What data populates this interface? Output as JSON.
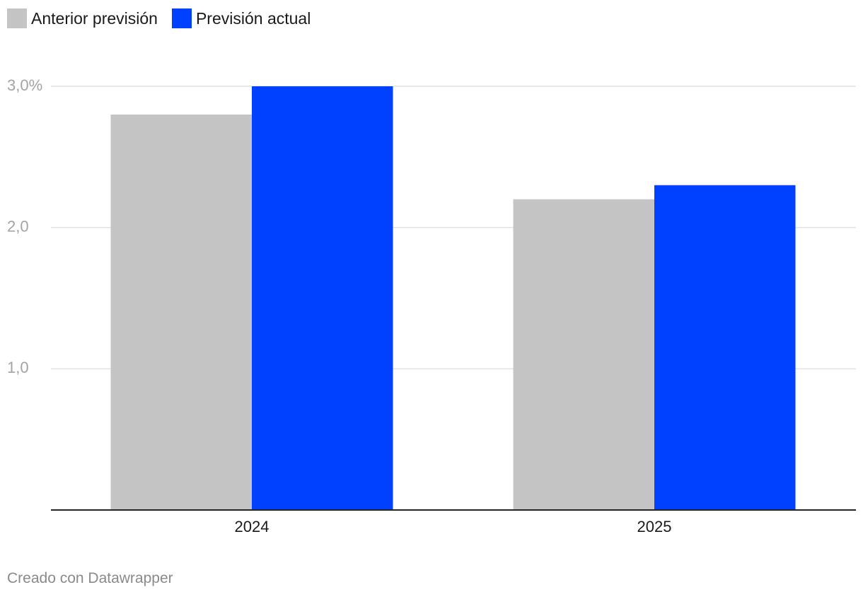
{
  "chart_data": {
    "type": "bar",
    "categories": [
      "2024",
      "2025"
    ],
    "series": [
      {
        "name": "Anterior previsión",
        "color": "#c4c4c4",
        "values": [
          2.8,
          2.2
        ]
      },
      {
        "name": "Previsión actual",
        "color": "#0040ff",
        "values": [
          3.0,
          2.3
        ]
      }
    ],
    "y_ticks": [
      {
        "value": 1,
        "label": "1,0"
      },
      {
        "value": 2,
        "label": "2,0"
      },
      {
        "value": 3,
        "label": "3,0%"
      }
    ],
    "ylim": [
      0,
      3
    ],
    "grid": true,
    "legend_position": "top-left"
  },
  "credit": "Creado con Datawrapper"
}
